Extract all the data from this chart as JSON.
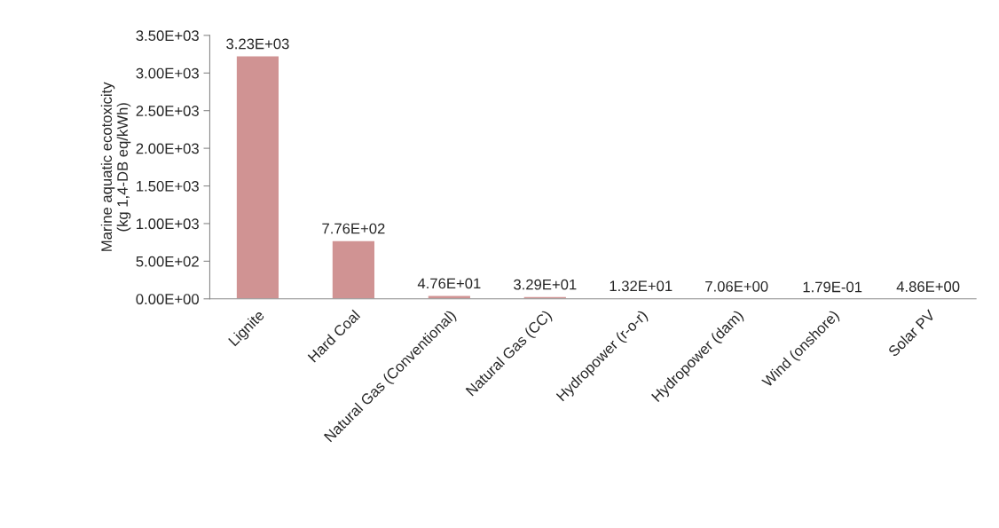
{
  "chart_data": {
    "type": "bar",
    "ylabel": "Marine aquatic ecotoxicity\n(kg 1,4-DB eq/kWh)",
    "categories": [
      "Lignite",
      "Hard Coal",
      "Natural Gas (Conventional)",
      "Natural Gas (CC)",
      "Hydropower (r-o-r)",
      "Hydropower (dam)",
      "Wind (onshore)",
      "Solar PV"
    ],
    "values": [
      3230,
      776,
      47.6,
      32.9,
      13.2,
      7.06,
      0.179,
      4.86
    ],
    "value_labels": [
      "3.23E+03",
      "7.76E+02",
      "4.76E+01",
      "3.29E+01",
      "1.32E+01",
      "7.06E+00",
      "1.79E-01",
      "4.86E+00"
    ],
    "color": "#d09393",
    "ylim": [
      0,
      3500
    ],
    "yticks": [
      {
        "value": 0,
        "label": "0.00E+00"
      },
      {
        "value": 500,
        "label": "5.00E+02"
      },
      {
        "value": 1000,
        "label": "1.00E+03"
      },
      {
        "value": 1500,
        "label": "1.50E+03"
      },
      {
        "value": 2000,
        "label": "2.00E+03"
      },
      {
        "value": 2500,
        "label": "2.50E+03"
      },
      {
        "value": 3000,
        "label": "3.00E+03"
      },
      {
        "value": 3500,
        "label": "3.50E+03"
      }
    ],
    "grid": false,
    "legend": false
  }
}
